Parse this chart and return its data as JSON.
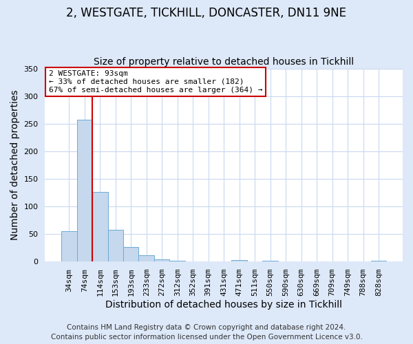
{
  "title": "2, WESTGATE, TICKHILL, DONCASTER, DN11 9NE",
  "subtitle": "Size of property relative to detached houses in Tickhill",
  "xlabel": "Distribution of detached houses by size in Tickhill",
  "ylabel": "Number of detached properties",
  "bar_labels": [
    "34sqm",
    "74sqm",
    "114sqm",
    "153sqm",
    "193sqm",
    "233sqm",
    "272sqm",
    "312sqm",
    "352sqm",
    "391sqm",
    "431sqm",
    "471sqm",
    "511sqm",
    "550sqm",
    "590sqm",
    "630sqm",
    "669sqm",
    "709sqm",
    "749sqm",
    "788sqm",
    "828sqm"
  ],
  "bar_values": [
    55,
    257,
    126,
    58,
    27,
    12,
    4,
    1,
    0,
    0,
    0,
    3,
    0,
    1,
    0,
    0,
    0,
    0,
    0,
    0,
    2
  ],
  "bar_color": "#c5d8ee",
  "bar_edge_color": "#6aaad4",
  "vline_x_index": 1.5,
  "vline_color": "#cc0000",
  "annotation_title": "2 WESTGATE: 93sqm",
  "annotation_line1": "← 33% of detached houses are smaller (182)",
  "annotation_line2": "67% of semi-detached houses are larger (364) →",
  "annotation_box_color": "#cc0000",
  "ylim": [
    0,
    350
  ],
  "yticks": [
    0,
    50,
    100,
    150,
    200,
    250,
    300,
    350
  ],
  "footer1": "Contains HM Land Registry data © Crown copyright and database right 2024.",
  "footer2": "Contains public sector information licensed under the Open Government Licence v3.0.",
  "bg_color": "#dde8f8",
  "plot_bg_color": "#ffffff",
  "grid_color": "#c8d8ef",
  "title_fontsize": 12,
  "subtitle_fontsize": 10,
  "axis_label_fontsize": 10,
  "tick_fontsize": 8,
  "footer_fontsize": 7.5
}
